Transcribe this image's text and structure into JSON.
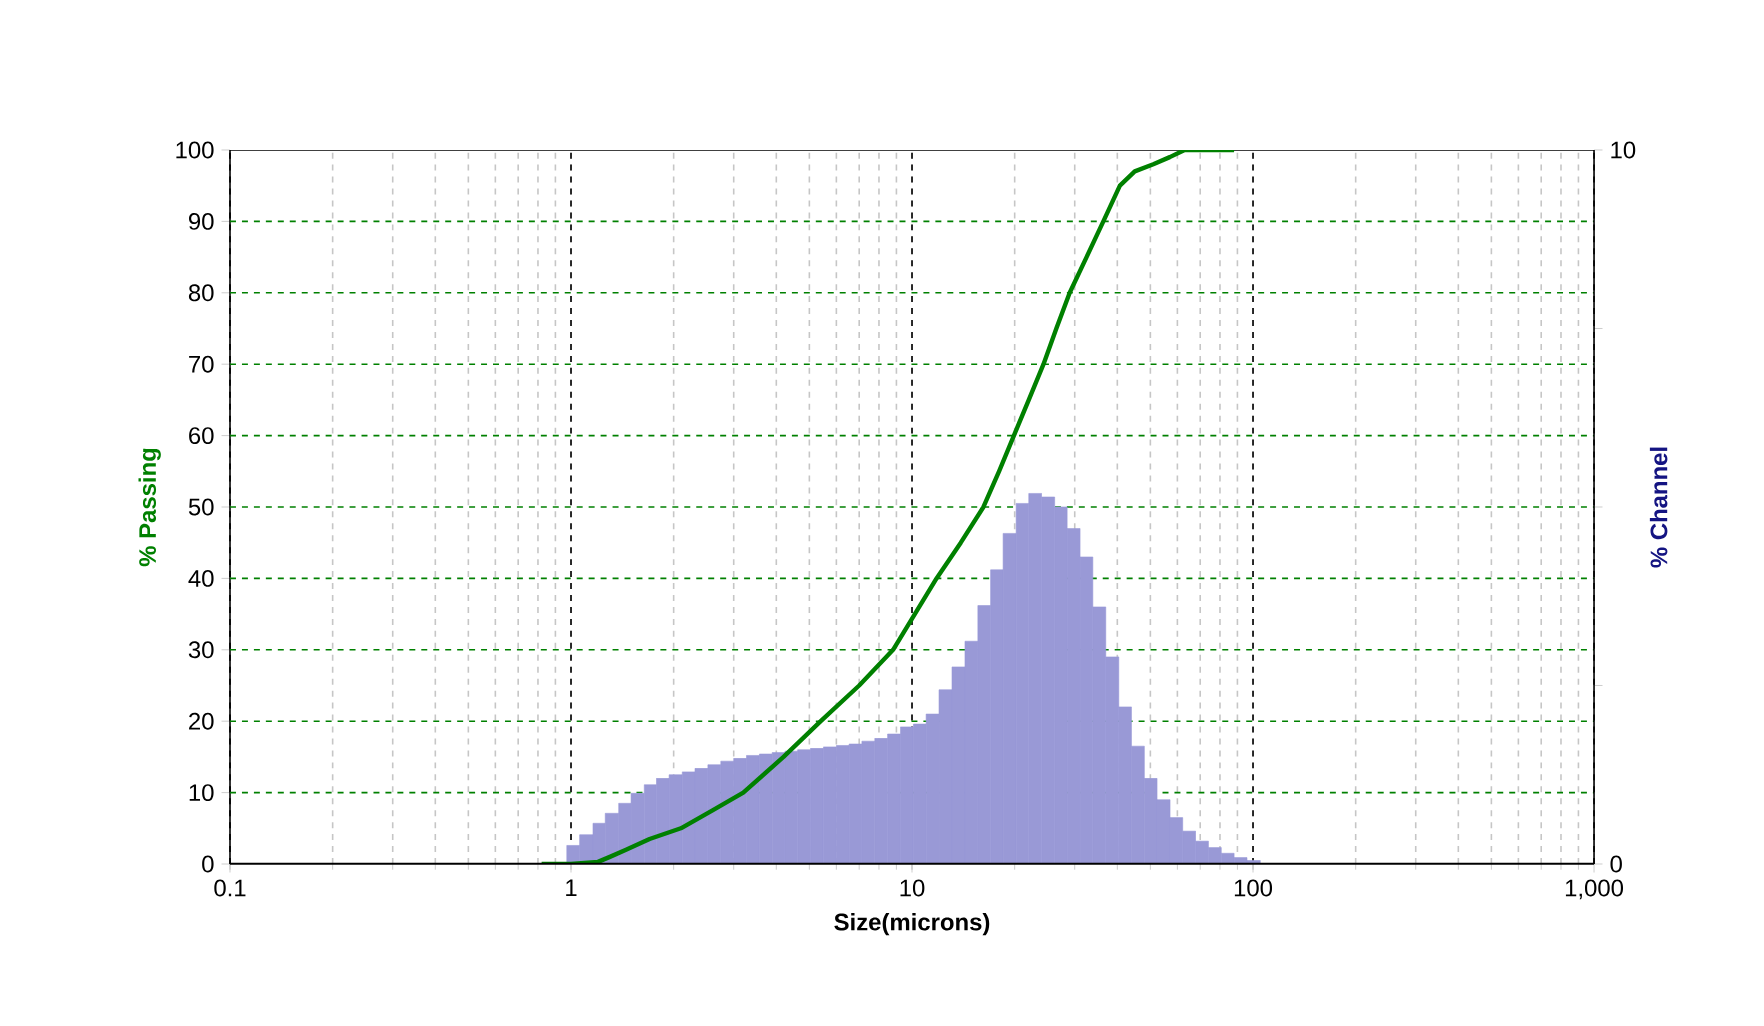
{
  "chart_data": {
    "type": "line",
    "xlabel": "Size(microns)",
    "ylabel": "% Passing",
    "y2label": "% Channel",
    "log": "x",
    "grid": true,
    "marker": "none",
    "xlim": [
      0.1,
      1000
    ],
    "xticks": [
      0.1,
      1,
      10,
      100,
      {
        "value": 1000,
        "label": "1,000"
      }
    ],
    "ylim": [
      0,
      100
    ],
    "yticks": [
      0,
      10,
      20,
      30,
      40,
      50,
      60,
      70,
      80,
      90,
      100
    ],
    "y2lim": [
      0,
      10
    ],
    "y2ticks": [
      0,
      {
        "value": 2.5,
        "label": null
      },
      {
        "value": 5,
        "label": null
      },
      {
        "value": 7.5,
        "label": null
      },
      10
    ],
    "series": [
      {
        "type": "histogram",
        "axis": "y2",
        "color": "#9999d6",
        "bins": [
          0.972,
          1.06,
          1.16,
          1.26,
          1.38,
          1.5,
          1.64,
          1.78,
          1.94,
          2.12,
          2.31,
          2.52,
          2.75,
          3,
          3.27,
          3.57,
          3.89,
          4.24,
          4.62,
          5.04,
          5.5,
          6,
          6.54,
          7.13,
          7.78,
          8.48,
          9.25,
          10.1,
          11,
          12,
          13.1,
          14.3,
          15.6,
          17,
          18.5,
          20.2,
          22,
          24,
          26.2,
          28.5,
          31.1,
          33.9,
          37,
          40.4,
          44,
          48,
          52.3,
          57.1,
          62.2,
          67.9,
          74,
          80.7,
          88,
          96,
          105
        ],
        "values": [
          0.26,
          0.41,
          0.57,
          0.71,
          0.85,
          0.99,
          1.11,
          1.2,
          1.25,
          1.29,
          1.34,
          1.39,
          1.44,
          1.48,
          1.52,
          1.54,
          1.56,
          1.58,
          1.6,
          1.62,
          1.64,
          1.66,
          1.68,
          1.72,
          1.76,
          1.82,
          1.92,
          1.96,
          2.1,
          2.44,
          2.76,
          3.12,
          3.62,
          4.12,
          4.63,
          5.05,
          5.19,
          5.14,
          5,
          4.7,
          4.3,
          3.6,
          2.9,
          2.2,
          1.65,
          1.2,
          0.9,
          0.65,
          0.46,
          0.32,
          0.23,
          0.15,
          0.09,
          0.05
        ]
      },
      {
        "color": "#008000",
        "x": [
          0.82,
          1.0,
          1.2,
          1.3,
          1.45,
          1.7,
          2.1,
          2.6,
          3.2,
          4.2,
          5.4,
          7,
          8.8,
          11.8,
          13.9,
          16.2,
          18,
          19.9,
          22,
          24.3,
          26.5,
          29,
          32.5,
          36.4,
          40.7,
          45,
          51,
          57,
          63,
          88
        ],
        "values": [
          0,
          0,
          0.3,
          1,
          2,
          3.5,
          5,
          7.5,
          10,
          15,
          20,
          25,
          30,
          40,
          45,
          50,
          55,
          60,
          65,
          70,
          75,
          80,
          85,
          90,
          95,
          97,
          98,
          99,
          100,
          100
        ]
      }
    ]
  }
}
